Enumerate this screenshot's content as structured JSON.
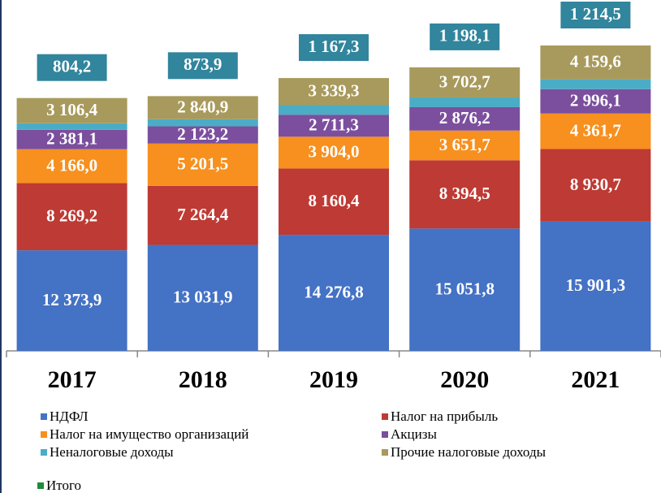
{
  "chart_data": {
    "type": "stacked_bar",
    "categories": [
      "2017",
      "2018",
      "2019",
      "2020",
      "2021"
    ],
    "series": [
      {
        "name": "НДФЛ",
        "color": "#4472c4",
        "values": [
          12373.9,
          13031.9,
          14276.8,
          15051.8,
          15901.3
        ],
        "value_labels": [
          "12 373,9",
          "13 031,9",
          "14 276,8",
          "15 051,8",
          "15 901,3"
        ]
      },
      {
        "name": "Налог на прибыль",
        "color": "#be3a34",
        "values": [
          8269.2,
          7264.4,
          8160.4,
          8394.5,
          8930.7
        ],
        "value_labels": [
          "8 269,2",
          "7 264,4",
          "8 160,4",
          "8 394,5",
          "8 930,7"
        ]
      },
      {
        "name": "Налог на имущество организаций",
        "color": "#f7901e",
        "values": [
          4166.0,
          5201.5,
          3904.0,
          3651.7,
          4361.7
        ],
        "value_labels": [
          "4 166,0",
          "5 201,5",
          "3 904,0",
          "3 651,7",
          "4 361,7"
        ]
      },
      {
        "name": "Акцизы",
        "color": "#7b4f9d",
        "values": [
          2381.1,
          2123.2,
          2711.3,
          2876.2,
          2996.1
        ],
        "value_labels": [
          "2 381,1",
          "2 123,2",
          "2 711,3",
          "2 876,2",
          "2 996,1"
        ]
      },
      {
        "name": "Неналоговые доходы",
        "color": "#4bacc6",
        "values": [
          804.2,
          873.9,
          1167.3,
          1198.1,
          1214.5
        ],
        "value_labels": [
          "804,2",
          "873,9",
          "1 167,3",
          "1 198,1",
          "1 214,5"
        ]
      },
      {
        "name": "Прочие налоговые доходы",
        "color": "#a89a5c",
        "values": [
          3106.4,
          2840.9,
          3339.3,
          3702.7,
          4159.6
        ],
        "value_labels": [
          "3 106,4",
          "2 840,9",
          "3 339,3",
          "3 702,7",
          "4 159,6"
        ]
      },
      {
        "name": "Итого",
        "color": "#1e8c3a",
        "values": [
          null,
          null,
          null,
          null,
          null
        ]
      }
    ]
  }
}
